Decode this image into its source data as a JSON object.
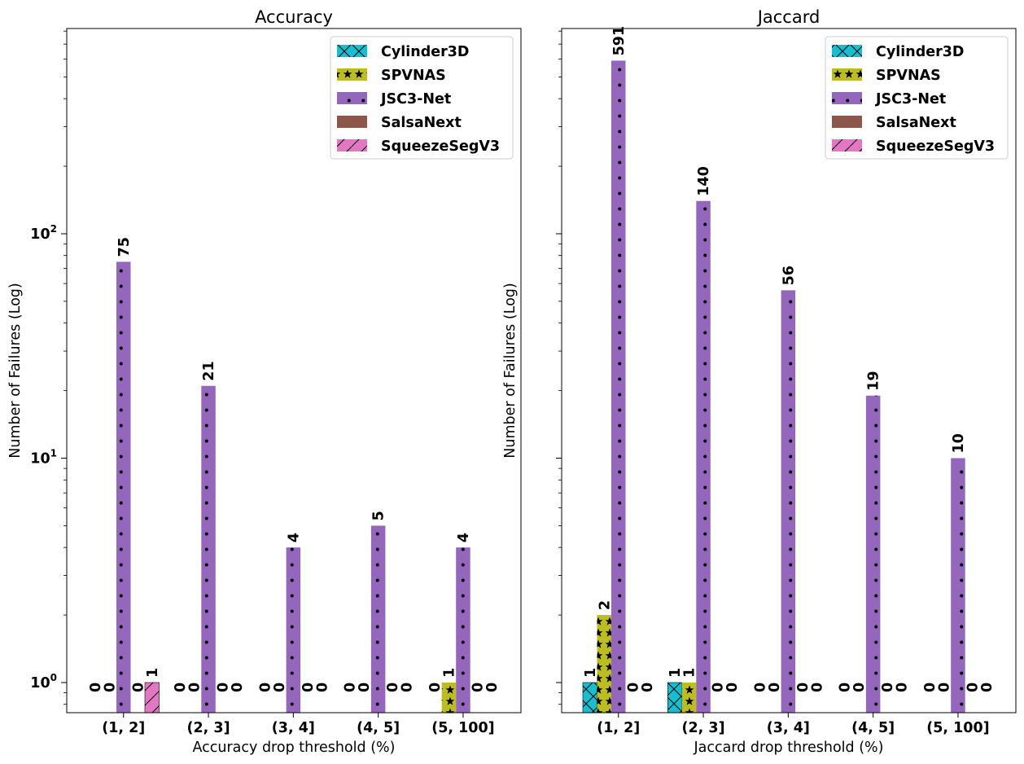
{
  "chart_data": [
    {
      "type": "bar",
      "title": "Accuracy",
      "xlabel": "Accuracy drop threshold (%)",
      "ylabel": "Number of Failures (Log)",
      "yscale": "log",
      "ylim": [
        0.75,
        800
      ],
      "ytick_labels": [
        "10^0",
        "10^1",
        "10^2"
      ],
      "categories": [
        "(1, 2]",
        "(2, 3]",
        "(3, 4]",
        "(4, 5]",
        "(5, 100]"
      ],
      "legend": "top-right",
      "series": [
        {
          "name": "Cylinder3D",
          "color": "#17becf",
          "hatch": "x",
          "values": [
            0,
            0,
            0,
            0,
            0
          ]
        },
        {
          "name": "SPVNAS",
          "color": "#bcbd22",
          "hatch": "star",
          "values": [
            0,
            0,
            0,
            0,
            1
          ]
        },
        {
          "name": "JSC3-Net",
          "color": "#9467bd",
          "hatch": "dots",
          "values": [
            75,
            21,
            4,
            5,
            4
          ]
        },
        {
          "name": "SalsaNext",
          "color": "#8c564b",
          "hatch": "none",
          "values": [
            0,
            0,
            0,
            0,
            0
          ]
        },
        {
          "name": "SqueezeSegV3",
          "color": "#e377c2",
          "hatch": "slash",
          "values": [
            1,
            0,
            0,
            0,
            0
          ]
        }
      ]
    },
    {
      "type": "bar",
      "title": "Jaccard",
      "xlabel": "Jaccard drop threshold (%)",
      "ylabel": "Number of Failures (Log)",
      "yscale": "log",
      "ylim": [
        0.75,
        800
      ],
      "categories": [
        "(1, 2]",
        "(2, 3]",
        "(3, 4]",
        "(4, 5]",
        "(5, 100]"
      ],
      "legend": "top-right",
      "series": [
        {
          "name": "Cylinder3D",
          "color": "#17becf",
          "hatch": "x",
          "values": [
            1,
            1,
            0,
            0,
            0
          ]
        },
        {
          "name": "SPVNAS",
          "color": "#bcbd22",
          "hatch": "star",
          "values": [
            2,
            1,
            0,
            0,
            0
          ]
        },
        {
          "name": "JSC3-Net",
          "color": "#9467bd",
          "hatch": "dots",
          "values": [
            591,
            140,
            56,
            19,
            10
          ]
        },
        {
          "name": "SalsaNext",
          "color": "#8c564b",
          "hatch": "none",
          "values": [
            0,
            0,
            0,
            0,
            0
          ]
        },
        {
          "name": "SqueezeSegV3",
          "color": "#e377c2",
          "hatch": "slash",
          "values": [
            0,
            0,
            0,
            0,
            0
          ]
        }
      ]
    }
  ]
}
